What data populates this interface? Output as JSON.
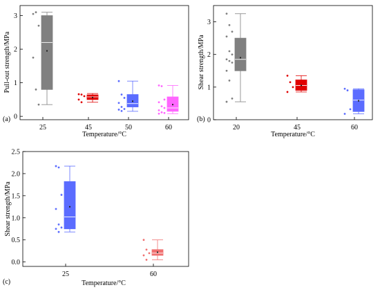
{
  "chart_data": [
    {
      "type": "box",
      "panel_label": "(a)",
      "xlabel": "Temperature/°C",
      "ylabel": "Pull-out strength/MPa",
      "ylim": [
        -0.1,
        3.3
      ],
      "yticks": [
        0,
        1,
        2,
        3
      ],
      "categories": [
        "25",
        "45",
        "50",
        "60"
      ],
      "boxes": [
        {
          "category": "25",
          "color": "#808080",
          "whisker_low": 0.35,
          "q1": 0.8,
          "median": 2.2,
          "q3": 3.0,
          "whisker_high": 3.1,
          "mean": 1.95,
          "points": [
            3.05,
            3.1,
            2.7,
            1.75,
            0.8,
            0.35
          ]
        },
        {
          "category": "45",
          "color": "#e00000",
          "whisker_low": 0.42,
          "q1": 0.5,
          "median": 0.58,
          "q3": 0.64,
          "whisker_high": 0.68,
          "mean": 0.56,
          "points": [
            0.66,
            0.65,
            0.6,
            0.5,
            0.42
          ]
        },
        {
          "category": "50",
          "color": "#5b6cff",
          "whisker_low": 0.15,
          "q1": 0.28,
          "median": 0.38,
          "q3": 0.65,
          "whisker_high": 1.05,
          "mean": 0.45,
          "points": [
            1.05,
            0.65,
            0.55,
            0.4,
            0.28,
            0.22,
            0.2,
            0.16
          ]
        },
        {
          "category": "60",
          "color": "#ff66ff",
          "whisker_low": 0.08,
          "q1": 0.15,
          "median": 0.25,
          "q3": 0.58,
          "whisker_high": 0.92,
          "mean": 0.35,
          "points": [
            0.92,
            0.9,
            0.5,
            0.42,
            0.3,
            0.25,
            0.18,
            0.12,
            0.1,
            0.08
          ]
        }
      ]
    },
    {
      "type": "box",
      "panel_label": "(b)",
      "xlabel": "Temperature/°C",
      "ylabel": "Shear strength/MPa",
      "ylim": [
        0,
        3.5
      ],
      "yticks": [
        0,
        1,
        2,
        3
      ],
      "categories": [
        "20",
        "45",
        "60"
      ],
      "boxes": [
        {
          "category": "20",
          "color": "#808080",
          "whisker_low": 0.55,
          "q1": 1.5,
          "median": 1.85,
          "q3": 2.5,
          "whisker_high": 3.25,
          "mean": 1.9,
          "points": [
            3.25,
            2.9,
            2.7,
            2.55,
            2.1,
            2.0,
            1.85,
            1.8,
            1.75,
            1.5,
            1.2,
            0.65,
            0.55
          ]
        },
        {
          "category": "45",
          "color": "#e00000",
          "whisker_low": 0.85,
          "q1": 0.9,
          "median": 1.05,
          "q3": 1.22,
          "whisker_high": 1.35,
          "mean": 1.05,
          "points": [
            1.35,
            1.15,
            1.0,
            0.85
          ]
        },
        {
          "category": "60",
          "color": "#5b6cff",
          "whisker_low": 0.18,
          "q1": 0.25,
          "median": 0.6,
          "q3": 0.92,
          "whisker_high": 0.95,
          "mean": 0.58,
          "points": [
            0.95,
            0.9,
            0.32,
            0.18
          ]
        }
      ]
    },
    {
      "type": "box",
      "panel_label": "(c)",
      "xlabel": "Temperature/°C",
      "ylabel": "Shear strength/MPa",
      "ylim": [
        -0.1,
        2.5
      ],
      "yticks": [
        0.0,
        0.5,
        1.0,
        1.5,
        2.0,
        2.5
      ],
      "categories": [
        "25",
        "60"
      ],
      "boxes": [
        {
          "category": "25",
          "color": "#5b6cff",
          "whisker_low": 0.68,
          "q1": 0.75,
          "median": 1.02,
          "q3": 1.82,
          "whisker_high": 2.17,
          "mean": 1.25,
          "points": [
            2.17,
            2.14,
            1.52,
            1.2,
            0.85,
            0.78,
            0.75,
            0.68
          ]
        },
        {
          "category": "60",
          "color": "#f07070",
          "whisker_low": 0.05,
          "q1": 0.15,
          "median": 0.2,
          "q3": 0.28,
          "whisker_high": 0.5,
          "mean": 0.22,
          "points": [
            0.5,
            0.28,
            0.2,
            0.15,
            0.05
          ]
        }
      ]
    }
  ]
}
